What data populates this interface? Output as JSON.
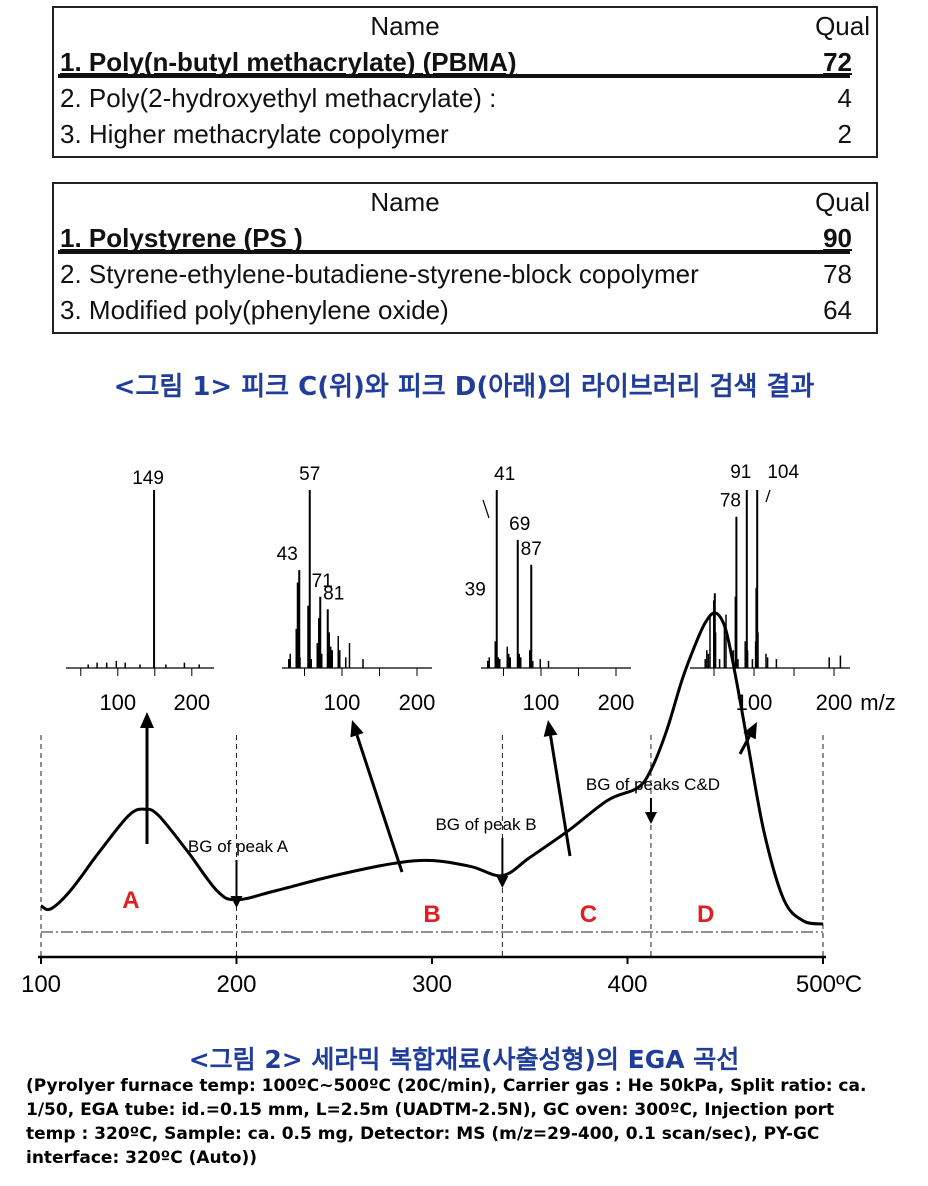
{
  "table1": {
    "header_name": "Name",
    "header_qual": "Qual",
    "rows": [
      {
        "name": "1. Poly(n-butyl methacrylate) (PBMA)",
        "qual": "72"
      },
      {
        "name": "2. Poly(2-hydroxyethyl methacrylate) :",
        "qual": "4"
      },
      {
        "name": "3. Higher methacrylate copolymer",
        "qual": "2"
      }
    ]
  },
  "table2": {
    "header_name": "Name",
    "header_qual": "Qual",
    "rows": [
      {
        "name": "1. Polystyrene (PS )",
        "qual": "90"
      },
      {
        "name": "2. Styrene-ethylene-butadiene-styrene-block copolymer",
        "qual": "78"
      },
      {
        "name": "3. Modified poly(phenylene oxide)",
        "qual": "64"
      }
    ]
  },
  "caption1": "<그림 1> 피크 C(위)와 피크 D(아래)의 라이브러리 검색 결과",
  "caption2": "<그림 2> 세라믹 복합재료(사출성형)의 EGA 곡선",
  "notes": [
    "(Pyrolyer furnace temp: 100ºC~500ºC (20C/min), Carrier gas : He 50kPa, Split ratio: ca.",
    "1/50, EGA tube: id.=0.15 mm, L=2.5m (UADTM-2.5N), GC oven: 300ºC, Injection port",
    "temp : 320ºC, Sample: ca. 0.5 mg, Detector: MS (m/z=29-400, 0.1 scan/sec), PY-GC",
    "interface: 320ºC (Auto))"
  ],
  "chart_data": {
    "type": "line",
    "xlabel": "",
    "x_ticks": [
      "100",
      "200",
      "300",
      "400",
      "500ºC"
    ],
    "xlim": [
      100,
      500
    ],
    "region_boundaries": [
      200,
      336,
      412
    ],
    "annotations": [
      "BG of peak A",
      "BG of peak B",
      "BG of peaks C&D"
    ],
    "peak_labels": [
      "A",
      "B",
      "C",
      "D"
    ],
    "peak_label_color": "#e02020",
    "curve": {
      "x": [
        100,
        105,
        115,
        130,
        145,
        153,
        160,
        175,
        190,
        200,
        220,
        250,
        280,
        300,
        320,
        336,
        350,
        370,
        390,
        405,
        412,
        420,
        428,
        435,
        440,
        445,
        450,
        455,
        462,
        470,
        480,
        490,
        500
      ],
      "y": [
        0.08,
        0.07,
        0.13,
        0.26,
        0.38,
        0.4,
        0.38,
        0.26,
        0.13,
        0.1,
        0.13,
        0.18,
        0.22,
        0.23,
        0.21,
        0.18,
        0.24,
        0.33,
        0.43,
        0.47,
        0.53,
        0.66,
        0.83,
        0.95,
        1.02,
        1.05,
        1.0,
        0.85,
        0.6,
        0.32,
        0.1,
        0.03,
        0.02
      ]
    },
    "spectra": [
      {
        "name": "A",
        "xlabel": "",
        "ticks": [
          "100",
          "200"
        ],
        "labels": [
          "149"
        ],
        "peaks": [
          [
            60,
            0.02
          ],
          [
            72,
            0.03
          ],
          [
            85,
            0.03
          ],
          [
            98,
            0.04
          ],
          [
            110,
            0.03
          ],
          [
            130,
            0.02
          ],
          [
            149,
            1.0
          ],
          [
            165,
            0.02
          ],
          [
            190,
            0.03
          ],
          [
            210,
            0.02
          ]
        ]
      },
      {
        "name": "B",
        "xlabel": "",
        "ticks": [
          "100",
          "200"
        ],
        "labels": [
          "43",
          "57",
          "71",
          "81"
        ],
        "peaks": [
          [
            29,
            0.05
          ],
          [
            31,
            0.08
          ],
          [
            39,
            0.22
          ],
          [
            41,
            0.48
          ],
          [
            43,
            0.55
          ],
          [
            44,
            0.06
          ],
          [
            55,
            0.35
          ],
          [
            57,
            1.0
          ],
          [
            59,
            0.05
          ],
          [
            67,
            0.14
          ],
          [
            69,
            0.28
          ],
          [
            71,
            0.4
          ],
          [
            73,
            0.08
          ],
          [
            81,
            0.33
          ],
          [
            83,
            0.2
          ],
          [
            85,
            0.12
          ],
          [
            87,
            0.1
          ],
          [
            95,
            0.18
          ],
          [
            97,
            0.1
          ],
          [
            105,
            0.06
          ],
          [
            110,
            0.14
          ],
          [
            128,
            0.05
          ]
        ]
      },
      {
        "name": "C",
        "xlabel": "",
        "ticks": [
          "100",
          "200"
        ],
        "labels": [
          "39",
          "41",
          "69",
          "87"
        ],
        "peaks": [
          [
            29,
            0.04
          ],
          [
            31,
            0.06
          ],
          [
            39,
            0.15
          ],
          [
            41,
            1.0
          ],
          [
            43,
            0.06
          ],
          [
            45,
            0.05
          ],
          [
            55,
            0.12
          ],
          [
            57,
            0.08
          ],
          [
            59,
            0.06
          ],
          [
            69,
            0.72
          ],
          [
            71,
            0.08
          ],
          [
            73,
            0.06
          ],
          [
            85,
            0.1
          ],
          [
            87,
            0.58
          ],
          [
            89,
            0.04
          ],
          [
            99,
            0.05
          ],
          [
            110,
            0.04
          ]
        ]
      },
      {
        "name": "D",
        "xlabel": "m/z",
        "ticks": [
          "100",
          "200"
        ],
        "labels": [
          "78",
          "91",
          "104"
        ],
        "peaks": [
          [
            39,
            0.05
          ],
          [
            41,
            0.1
          ],
          [
            43,
            0.08
          ],
          [
            45,
            0.3
          ],
          [
            50,
            0.38
          ],
          [
            51,
            0.42
          ],
          [
            52,
            0.2
          ],
          [
            57,
            0.05
          ],
          [
            63,
            0.25
          ],
          [
            65,
            0.3
          ],
          [
            74,
            0.1
          ],
          [
            77,
            0.4
          ],
          [
            78,
            0.85
          ],
          [
            80,
            0.05
          ],
          [
            89,
            0.15
          ],
          [
            91,
            1.0
          ],
          [
            92,
            0.1
          ],
          [
            98,
            0.05
          ],
          [
            102,
            0.15
          ],
          [
            103,
            0.45
          ],
          [
            104,
            1.0
          ],
          [
            105,
            0.2
          ],
          [
            115,
            0.08
          ],
          [
            117,
            0.06
          ],
          [
            128,
            0.05
          ],
          [
            194,
            0.06
          ],
          [
            208,
            0.07
          ]
        ]
      }
    ]
  }
}
